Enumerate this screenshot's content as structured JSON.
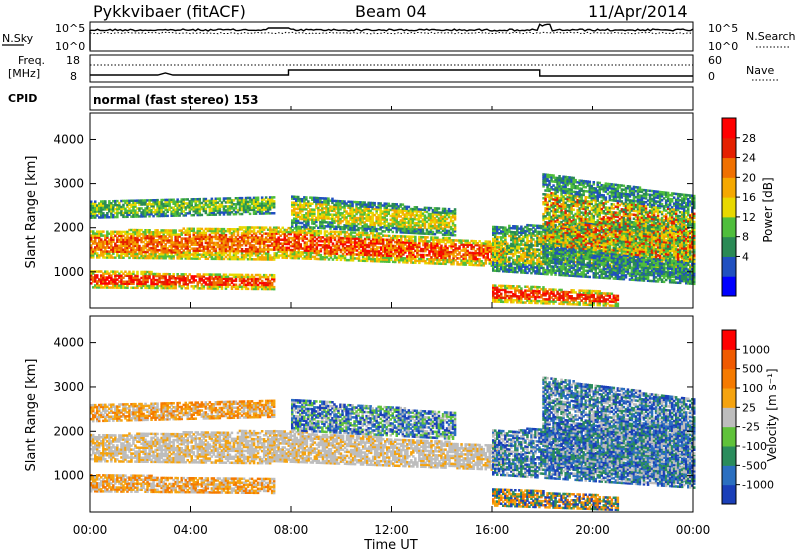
{
  "header": {
    "station": "Pykkvibaer (fitACF)",
    "beam": "Beam 04",
    "date": "11/Apr/2014"
  },
  "strip_labels": {
    "nsky": "N.Sky",
    "nsearch": "N.Search",
    "freq_line1": "Freq.",
    "freq_line2": "[MHz]",
    "nave": "Nave",
    "cpid": "CPID",
    "mode_text": "normal (fast stereo) 153",
    "noise_ticks": [
      "10^5",
      "10^0"
    ],
    "freq_ticks_left": [
      "18",
      "8"
    ],
    "nave_ticks_right": [
      "60",
      "0"
    ]
  },
  "chart_data": [
    {
      "type": "heatmap",
      "title": "Power",
      "ylabel": "Slant Range [km]",
      "xlabel": "",
      "ylim": [
        180,
        4600
      ],
      "y_ticks": [
        "4000",
        "3000",
        "2000",
        "1000"
      ],
      "colorbar_label": "Power [dB]",
      "colorbar_ticks": [
        "28",
        "24",
        "20",
        "16",
        "12",
        "8",
        "4"
      ],
      "colors": [
        "#0000ff",
        "#2050c0",
        "#2a8a55",
        "#4fbe3c",
        "#e8d800",
        "#f5a800",
        "#f07000",
        "#e52000",
        "#ff0000"
      ]
    },
    {
      "type": "heatmap",
      "title": "Velocity",
      "ylabel": "Slant Range [km]",
      "xlabel": "Time UT",
      "ylim": [
        180,
        4600
      ],
      "y_ticks": [
        "4000",
        "3000",
        "2000",
        "1000"
      ],
      "x_ticks": [
        "00:00",
        "04:00",
        "08:00",
        "12:00",
        "16:00",
        "20:00",
        "00:00"
      ],
      "colorbar_label": "Velocity [m s⁻¹]",
      "colorbar_ticks": [
        "1000",
        "500",
        "100",
        "25",
        "-25",
        "-100",
        "-500",
        "-1000"
      ],
      "colors": [
        "#1a3fb8",
        "#2b6fc0",
        "#2a8c5c",
        "#5fc23a",
        "#bdbdbd",
        "#f5a30f",
        "#f57a00",
        "#f05a00",
        "#ff0000"
      ]
    }
  ]
}
